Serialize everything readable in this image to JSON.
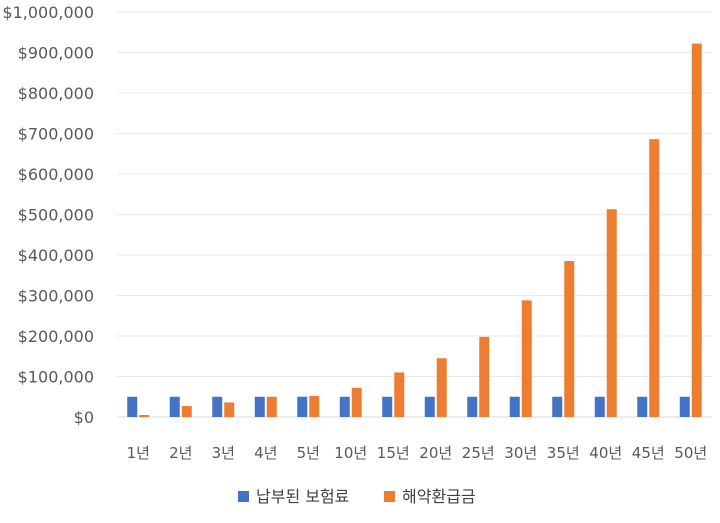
{
  "chart_data": {
    "type": "bar",
    "title": "",
    "xlabel": "",
    "ylabel": "",
    "categories": [
      "1년",
      "2년",
      "3년",
      "4년",
      "5년",
      "10년",
      "15년",
      "20년",
      "25년",
      "30년",
      "35년",
      "40년",
      "45년",
      "50년"
    ],
    "series": [
      {
        "name": "납부된 보험료",
        "color": "#4472C4",
        "values": [
          50000,
          50000,
          50000,
          50000,
          50000,
          50000,
          50000,
          50000,
          50000,
          50000,
          50000,
          50000,
          50000,
          50000
        ]
      },
      {
        "name": "해약환급금",
        "color": "#ED7D31",
        "values": [
          5000,
          27000,
          36000,
          50000,
          52000,
          72000,
          110000,
          145000,
          198000,
          288000,
          385000,
          513000,
          686000,
          922000
        ]
      }
    ],
    "ylim": [
      0,
      1000000
    ],
    "yticks": [
      0,
      100000,
      200000,
      300000,
      400000,
      500000,
      600000,
      700000,
      800000,
      900000,
      1000000
    ],
    "ytick_labels": [
      "$0",
      "$100,000",
      "$200,000",
      "$300,000",
      "$400,000",
      "$500,000",
      "$600,000",
      "$700,000",
      "$800,000",
      "$900,000",
      "$1,000,000"
    ],
    "grid": true,
    "legend_position": "bottom"
  }
}
